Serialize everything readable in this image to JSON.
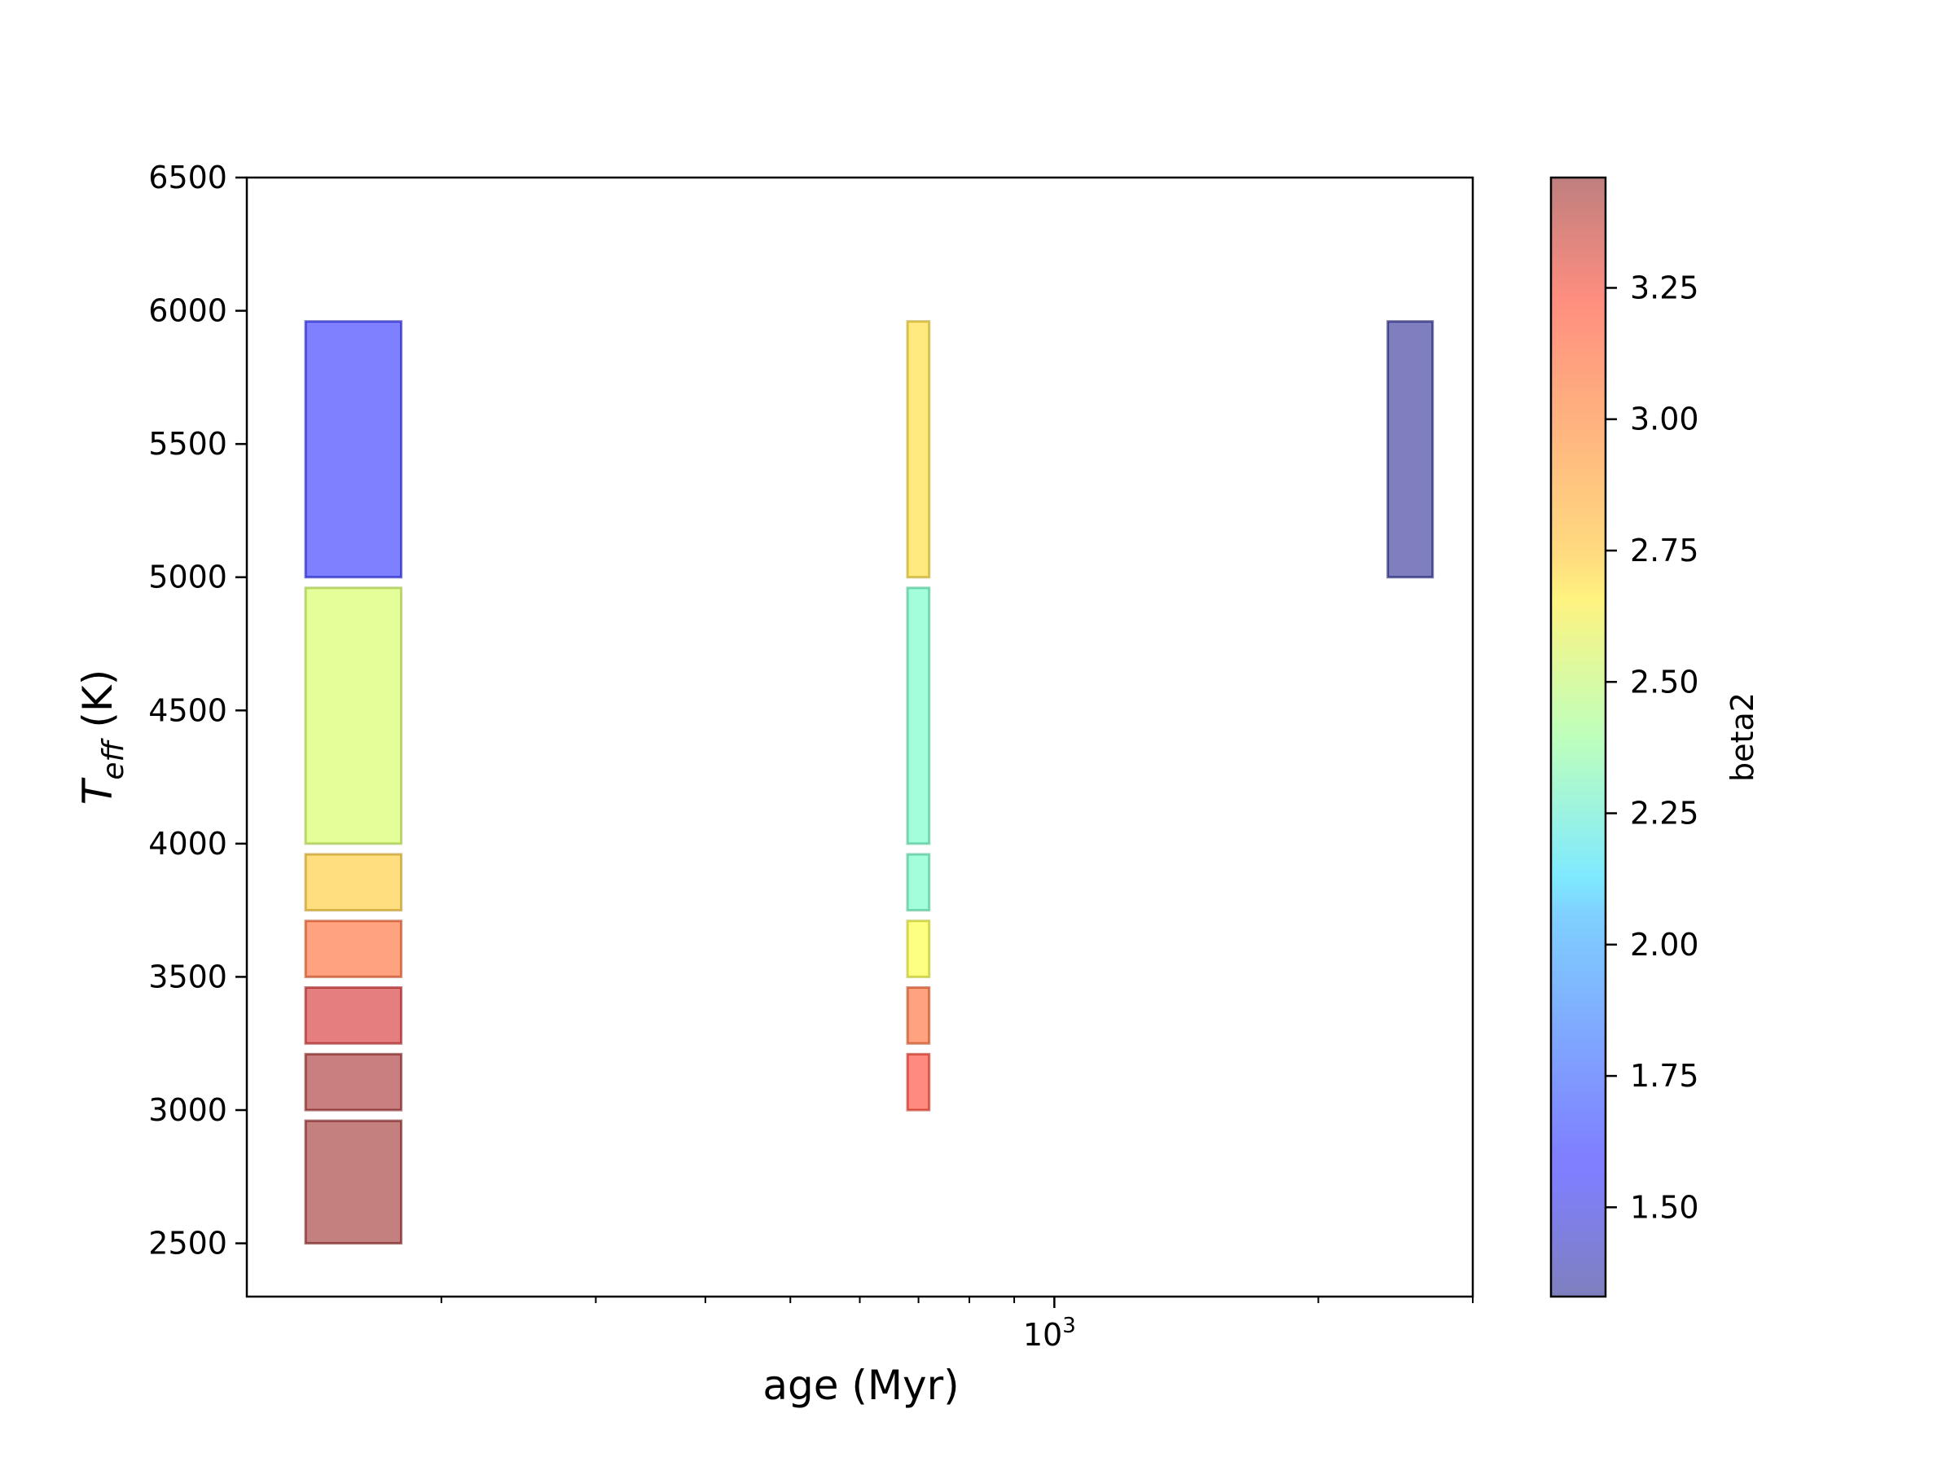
{
  "chart_data": {
    "type": "bar",
    "xlabel": "age (Myr)",
    "ylabel_main": "T",
    "ylabel_sub": "eff",
    "ylabel_unit": " (K)",
    "x_scale": "log",
    "xlim": [
      120,
      3000
    ],
    "ylim": [
      2300,
      6500
    ],
    "x_major_ticks": [
      {
        "value": 1000,
        "base": "10",
        "exp": "3"
      }
    ],
    "x_minor_ticks": [
      200,
      300,
      400,
      500,
      600,
      700,
      800,
      900,
      2000,
      3000
    ],
    "y_ticks": [
      2500,
      3000,
      3500,
      4000,
      4500,
      5000,
      5500,
      6000,
      6500
    ],
    "colorbar": {
      "label": "beta2",
      "range": [
        1.33,
        3.46
      ],
      "ticks": [
        "1.50",
        "1.75",
        "2.00",
        "2.25",
        "2.50",
        "2.75",
        "3.00",
        "3.25"
      ],
      "colormap": "jet",
      "alpha": 0.5
    },
    "series": [
      {
        "age_range": [
          140,
          180
        ],
        "bins": [
          {
            "teff": [
              5000,
              5960
            ],
            "beta2": 1.6
          },
          {
            "teff": [
              4000,
              4960
            ],
            "beta2": 2.55
          },
          {
            "teff": [
              3750,
              3960
            ],
            "beta2": 2.8
          },
          {
            "teff": [
              3500,
              3710
            ],
            "beta2": 3.05
          },
          {
            "teff": [
              3250,
              3460
            ],
            "beta2": 3.3
          },
          {
            "teff": [
              3000,
              3210
            ],
            "beta2": 3.42
          },
          {
            "teff": [
              2500,
              2960
            ],
            "beta2": 3.44
          }
        ]
      },
      {
        "age_range": [
          680,
          720
        ],
        "bins": [
          {
            "teff": [
              5000,
              5960
            ],
            "beta2": 2.75
          },
          {
            "teff": [
              4000,
              4960
            ],
            "beta2": 2.28
          },
          {
            "teff": [
              3750,
              3960
            ],
            "beta2": 2.28
          },
          {
            "teff": [
              3500,
              3710
            ],
            "beta2": 2.65
          },
          {
            "teff": [
              3250,
              3460
            ],
            "beta2": 3.05
          },
          {
            "teff": [
              3000,
              3210
            ],
            "beta2": 3.15
          }
        ]
      },
      {
        "age_range": [
          2400,
          2700
        ],
        "bins": [
          {
            "teff": [
              5000,
              5960
            ],
            "beta2": 1.33
          }
        ]
      }
    ]
  }
}
